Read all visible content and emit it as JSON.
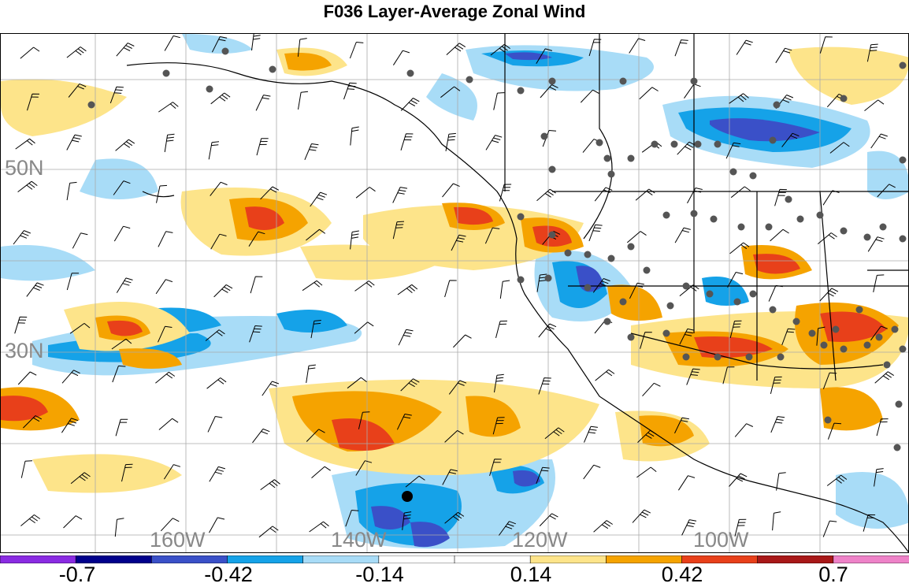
{
  "title": "F036 Layer-Average Zonal Wind",
  "map": {
    "lat_labels": [
      "50N",
      "30N"
    ],
    "lon_labels": [
      "160W",
      "140W",
      "120W",
      "100W"
    ]
  },
  "colorbar": {
    "colors": [
      "#8a2be2",
      "#00008b",
      "#3a50c8",
      "#15a2e8",
      "#a8dcf7",
      "#ffffff",
      "#ffffff",
      "#fde48a",
      "#f5a300",
      "#e8401a",
      "#a81818",
      "#ee82c8"
    ],
    "tick_labels": [
      "-0.7",
      "-0.42",
      "-0.14",
      "0.14",
      "0.42",
      "0.7"
    ]
  }
}
